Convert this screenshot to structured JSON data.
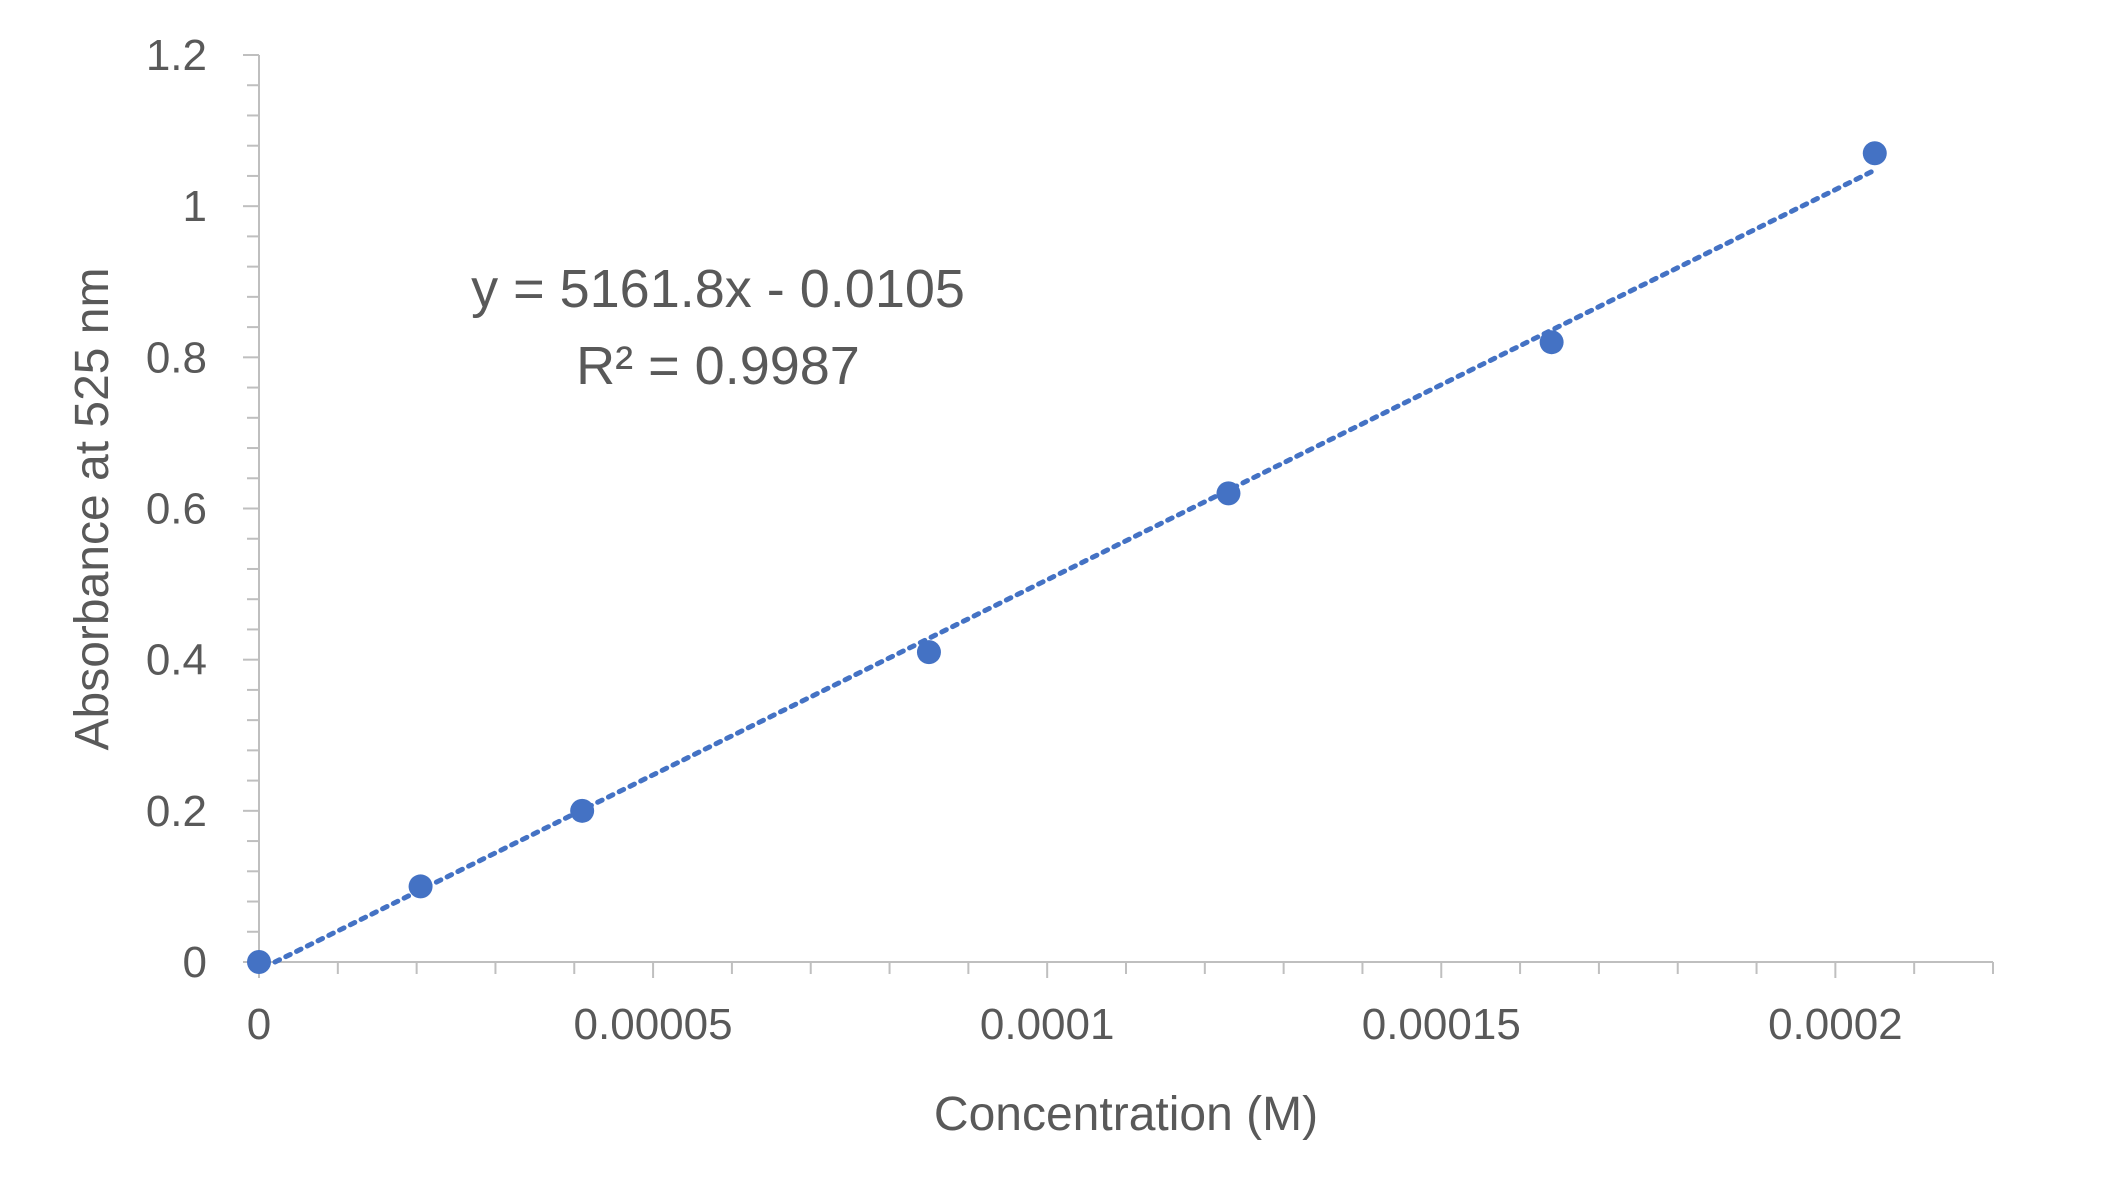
{
  "chart_data": {
    "type": "scatter",
    "title": "",
    "xlabel": "Concentration (M)",
    "ylabel": "Absorbance at 525 nm",
    "xlim": [
      0,
      0.00022
    ],
    "ylim": [
      0,
      1.2
    ],
    "x_ticks": [
      0,
      5e-05,
      0.0001,
      0.00015,
      0.0002
    ],
    "x_tick_labels": [
      "0",
      "0.00005",
      "0.0001",
      "0.00015",
      "0.0002"
    ],
    "y_ticks": [
      0,
      0.2,
      0.4,
      0.6,
      0.8,
      1,
      1.2
    ],
    "y_tick_labels": [
      "0",
      "0.2",
      "0.4",
      "0.6",
      "0.8",
      "1",
      "1.2"
    ],
    "grid": false,
    "legend": "none",
    "series": [
      {
        "color": "#4472C4",
        "points": [
          {
            "x": 0,
            "y": 0
          },
          {
            "x": 2.05e-05,
            "y": 0.1
          },
          {
            "x": 4.1e-05,
            "y": 0.2
          },
          {
            "x": 8.5e-05,
            "y": 0.41
          },
          {
            "x": 0.000123,
            "y": 0.62
          },
          {
            "x": 0.000164,
            "y": 0.82
          },
          {
            "x": 0.000205,
            "y": 1.07
          }
        ]
      }
    ],
    "trendline": {
      "type": "linear",
      "style": "dotted",
      "color": "#4472C4",
      "slope": 5161.8,
      "intercept": -0.0105,
      "x_range": [
        0,
        0.000205
      ]
    },
    "annotations": {
      "equation": "y = 5161.8x - 0.0105",
      "r_squared": "R² = 0.9987"
    },
    "axis_color": "#BFBFBF"
  }
}
